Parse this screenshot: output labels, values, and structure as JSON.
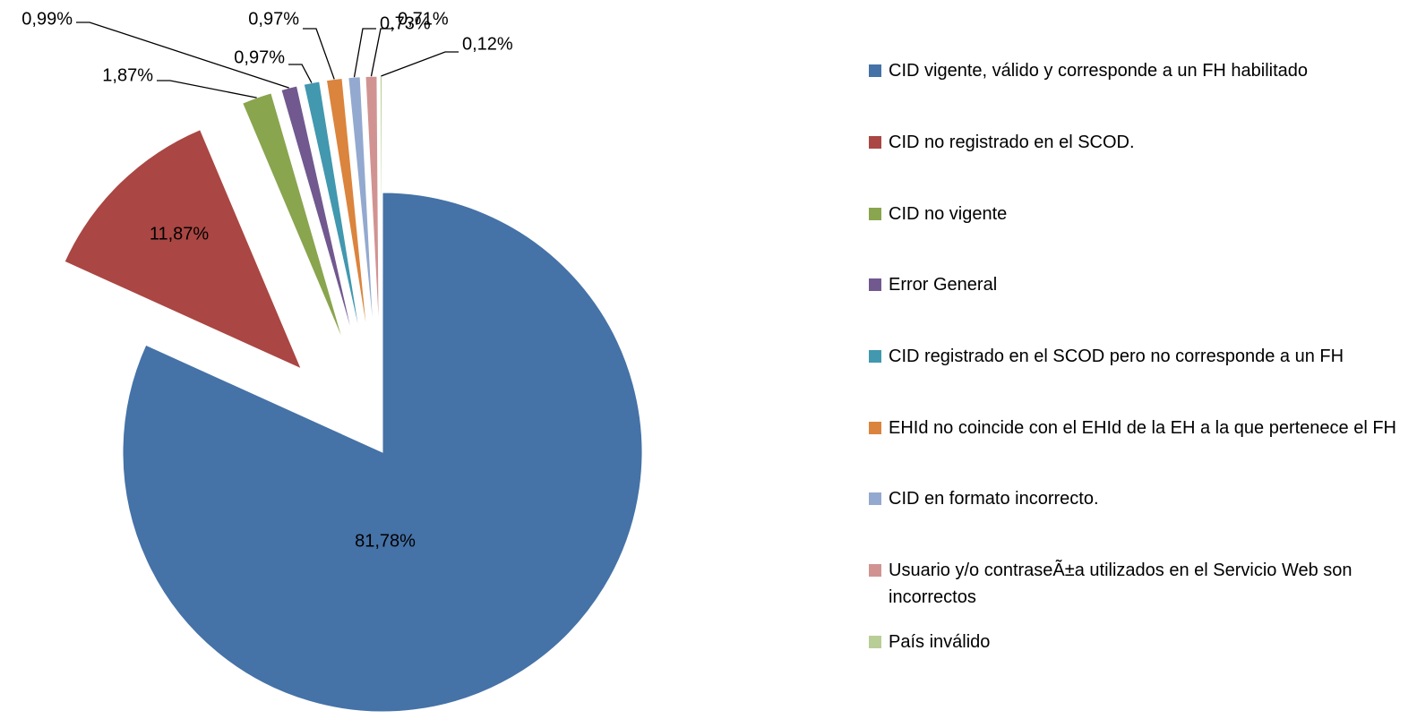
{
  "chart_data": {
    "type": "pie",
    "categories": [
      "CID vigente, válido y corresponde a un FH habilitado",
      "CID no registrado en el SCOD.",
      "CID no vigente",
      "Error General",
      "CID registrado en el SCOD pero no corresponde a un FH",
      "EHId no coincide con el EHId de la EH a la que pertenece el FH",
      "CID en formato incorrecto.",
      "Usuario y/o contraseÃ±a utilizados en el Servicio Web son incorrectos",
      "País inválido"
    ],
    "values": [
      81.78,
      11.87,
      1.87,
      0.99,
      0.97,
      0.97,
      0.73,
      0.71,
      0.12
    ],
    "value_labels": [
      "81,78%",
      "11,87%",
      "1,87%",
      "0,99%",
      "0,97%",
      "0,97%",
      "0,73%",
      "0,71%",
      "0,12%"
    ],
    "colors": [
      "#4572a7",
      "#aa4643",
      "#89a54e",
      "#71588f",
      "#4198af",
      "#db843d",
      "#93a9cf",
      "#d19392",
      "#b9cd96"
    ],
    "legend": "right"
  }
}
